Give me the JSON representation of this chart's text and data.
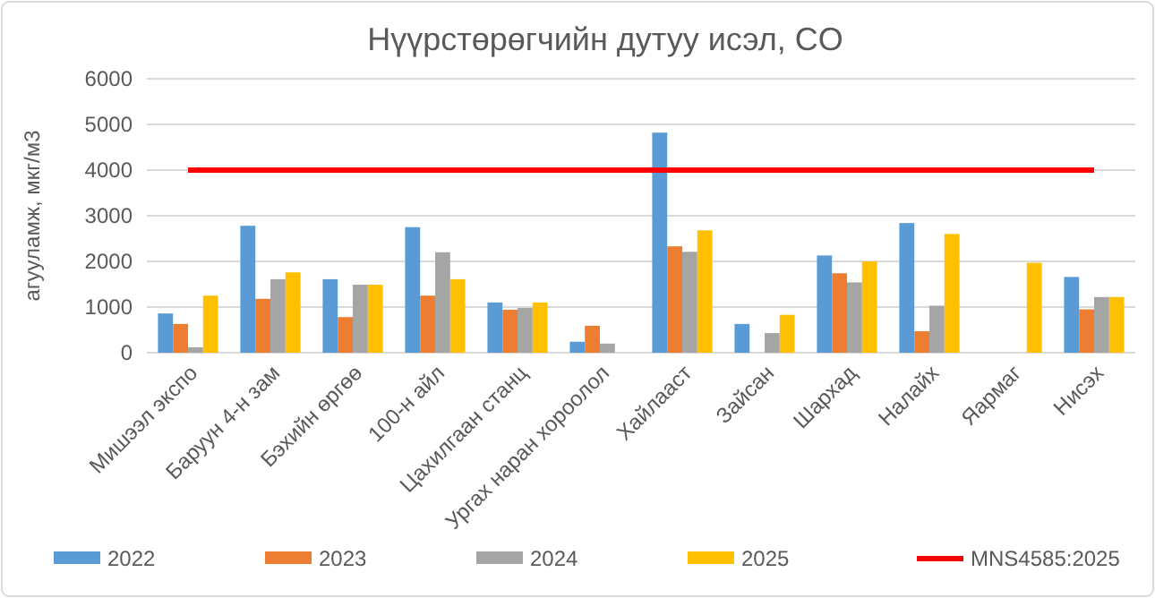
{
  "chart_data": {
    "type": "bar",
    "title": "Нүүрстөрөгчийн дутуу исэл, CO",
    "ylabel": "агууламж, мкг/м3",
    "categories": [
      "Мишээл экспо",
      "Баруун 4-н зам",
      "Бэхийн өргөө",
      "100-н айл",
      "Цахилгаан станц",
      "Ургах наран хороолол",
      "Хайлааст",
      "Зайсан",
      "Шархад",
      "Налайх",
      "Яармаг",
      "Нисэх"
    ],
    "series": [
      {
        "name": "2022",
        "color": "#5b9bd5",
        "values": [
          860,
          2780,
          1610,
          2750,
          1100,
          240,
          4820,
          630,
          2130,
          2840,
          null,
          1660
        ]
      },
      {
        "name": "2023",
        "color": "#ed7d31",
        "values": [
          630,
          1180,
          780,
          1250,
          940,
          590,
          2330,
          null,
          1740,
          470,
          null,
          950
        ]
      },
      {
        "name": "2024",
        "color": "#a5a5a5",
        "values": [
          120,
          1610,
          1490,
          2200,
          980,
          200,
          2210,
          430,
          1540,
          1030,
          null,
          1220
        ]
      },
      {
        "name": "2025",
        "color": "#ffc000",
        "values": [
          1250,
          1760,
          1490,
          1610,
          1100,
          null,
          2680,
          830,
          2000,
          2600,
          1970,
          1220
        ]
      },
      {
        "name": "MNS4585:2025",
        "type": "line",
        "color": "#ff0000",
        "values": [
          4000,
          4000,
          4000,
          4000,
          4000,
          4000,
          4000,
          4000,
          4000,
          4000,
          4000,
          4000
        ]
      }
    ],
    "ylim": [
      0,
      6000
    ],
    "yticks": [
      0,
      1000,
      2000,
      3000,
      4000,
      5000,
      6000
    ],
    "grid": "y",
    "legend": "bottom"
  }
}
